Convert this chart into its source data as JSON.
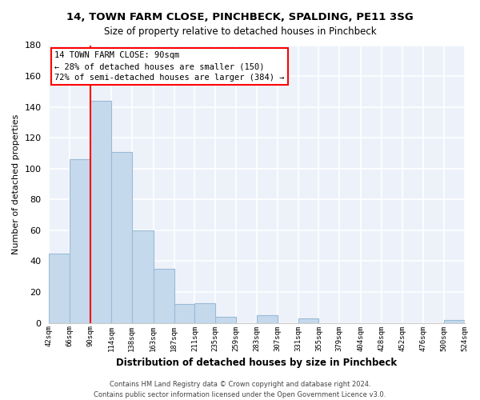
{
  "title": "14, TOWN FARM CLOSE, PINCHBECK, SPALDING, PE11 3SG",
  "subtitle": "Size of property relative to detached houses in Pinchbeck",
  "xlabel": "Distribution of detached houses by size in Pinchbeck",
  "ylabel": "Number of detached properties",
  "bar_color": "#c5d9ed",
  "bar_edge_color": "#9bbbd4",
  "vline_x": 90,
  "vline_color": "red",
  "bins": [
    42,
    66,
    90,
    114,
    138,
    163,
    187,
    211,
    235,
    259,
    283,
    307,
    331,
    355,
    379,
    404,
    428,
    452,
    476,
    500,
    524
  ],
  "values": [
    45,
    106,
    144,
    111,
    60,
    35,
    12,
    13,
    4,
    0,
    5,
    0,
    3,
    0,
    0,
    0,
    0,
    0,
    0,
    2
  ],
  "tick_labels": [
    "42sqm",
    "66sqm",
    "90sqm",
    "114sqm",
    "138sqm",
    "163sqm",
    "187sqm",
    "211sqm",
    "235sqm",
    "259sqm",
    "283sqm",
    "307sqm",
    "331sqm",
    "355sqm",
    "379sqm",
    "404sqm",
    "428sqm",
    "452sqm",
    "476sqm",
    "500sqm",
    "524sqm"
  ],
  "ylim": [
    0,
    180
  ],
  "yticks": [
    0,
    20,
    40,
    60,
    80,
    100,
    120,
    140,
    160,
    180
  ],
  "annotation_title": "14 TOWN FARM CLOSE: 90sqm",
  "annotation_line1": "← 28% of detached houses are smaller (150)",
  "annotation_line2": "72% of semi-detached houses are larger (384) →",
  "annotation_box_color": "white",
  "annotation_box_edge": "red",
  "footer_line1": "Contains HM Land Registry data © Crown copyright and database right 2024.",
  "footer_line2": "Contains public sector information licensed under the Open Government Licence v3.0.",
  "background_color": "#edf2fa",
  "grid_color": "#ffffff",
  "fig_width": 6.0,
  "fig_height": 5.0,
  "dpi": 100
}
